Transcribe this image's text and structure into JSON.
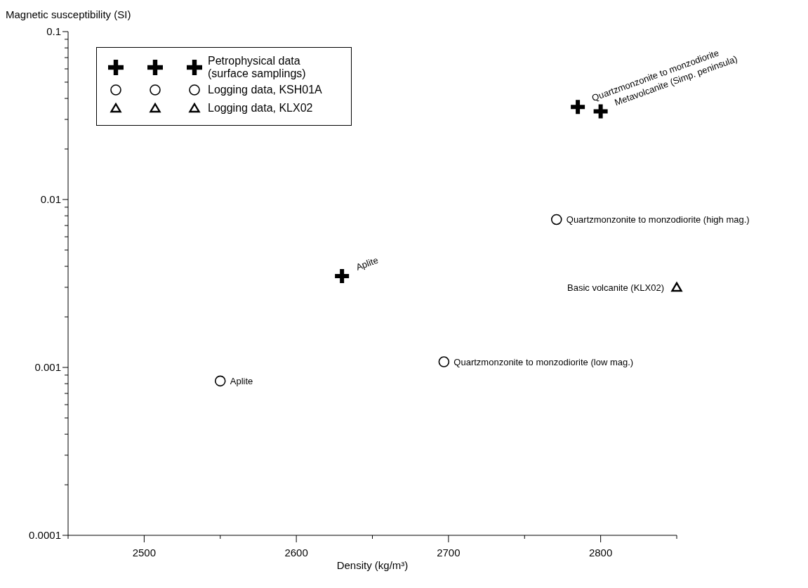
{
  "chart_data": {
    "type": "scatter",
    "xlabel": "Density (kg/m³)",
    "ylabel": "Magnetic susceptibility (SI)",
    "log": "y",
    "grid": false,
    "legend": "top left",
    "xlim": [
      2450,
      2850
    ],
    "xticks": [
      {
        "value": 2450,
        "label": null
      },
      2500,
      {
        "value": 2550,
        "label": null
      },
      2600,
      {
        "value": 2650,
        "label": null
      },
      2700,
      {
        "value": 2750,
        "label": null
      },
      2800,
      {
        "value": 2850,
        "label": null
      }
    ],
    "ylim": [
      0.0001,
      0.1
    ],
    "yticks": [
      {
        "value": 0.0001,
        "label": "0.0001"
      },
      {
        "value": 0.0002,
        "label": null
      },
      {
        "value": 0.0003,
        "label": null
      },
      {
        "value": 0.0004,
        "label": null
      },
      {
        "value": 0.0005,
        "label": null
      },
      {
        "value": 0.0006,
        "label": null
      },
      {
        "value": 0.0007,
        "label": null
      },
      {
        "value": 0.0008,
        "label": null
      },
      {
        "value": 0.0009,
        "label": null
      },
      {
        "value": 0.001,
        "label": "0.001"
      },
      {
        "value": 0.002,
        "label": null
      },
      {
        "value": 0.003,
        "label": null
      },
      {
        "value": 0.004,
        "label": null
      },
      {
        "value": 0.005,
        "label": null
      },
      {
        "value": 0.006,
        "label": null
      },
      {
        "value": 0.007,
        "label": null
      },
      {
        "value": 0.008,
        "label": null
      },
      {
        "value": 0.009,
        "label": null
      },
      {
        "value": 0.01,
        "label": "0.01"
      },
      {
        "value": 0.02,
        "label": null
      },
      {
        "value": 0.03,
        "label": null
      },
      {
        "value": 0.04,
        "label": null
      },
      {
        "value": 0.05,
        "label": null
      },
      {
        "value": 0.06,
        "label": null
      },
      {
        "value": 0.07,
        "label": null
      },
      {
        "value": 0.08,
        "label": null
      },
      {
        "value": 0.09,
        "label": null
      },
      {
        "value": 0.1,
        "label": "0.1"
      }
    ],
    "series": [
      {
        "name": "Petrophysical data (surface samplings)",
        "color": "#000000",
        "marker": "cross",
        "x": [
          2630,
          2785,
          2800
        ],
        "values": [
          0.0035,
          0.0356,
          0.0335
        ]
      },
      {
        "name": "Logging data, KSH01A",
        "color": "#000000",
        "marker": "circle",
        "x": [
          2550,
          2697,
          2771
        ],
        "values": [
          0.00083,
          0.00108,
          0.0076
        ]
      },
      {
        "name": "Logging data, KLX02",
        "color": "#000000",
        "marker": "triangle",
        "x": [
          2850
        ],
        "values": [
          0.003
        ]
      }
    ],
    "annotations": [
      {
        "text": "Aplite",
        "x": 2630,
        "y": 0.0035
      },
      {
        "text": "Quartzmonzonite to monzodiorite",
        "x": 2785,
        "y": 0.0356
      },
      {
        "text": "Metavolcanite (Simp. peninsula)",
        "x": 2800,
        "y": 0.0335
      },
      {
        "text": "Aplite",
        "x": 2550,
        "y": 0.00083
      },
      {
        "text": "Quartzmonzonite to monzodiorite (low mag.)",
        "x": 2697,
        "y": 0.00108
      },
      {
        "text": "Quartzmonzonite to monzodiorite  (high mag.)",
        "x": 2771,
        "y": 0.0076
      },
      {
        "text": "Basic volcanite (KLX02)",
        "x": 2850,
        "y": 0.003
      }
    ]
  }
}
